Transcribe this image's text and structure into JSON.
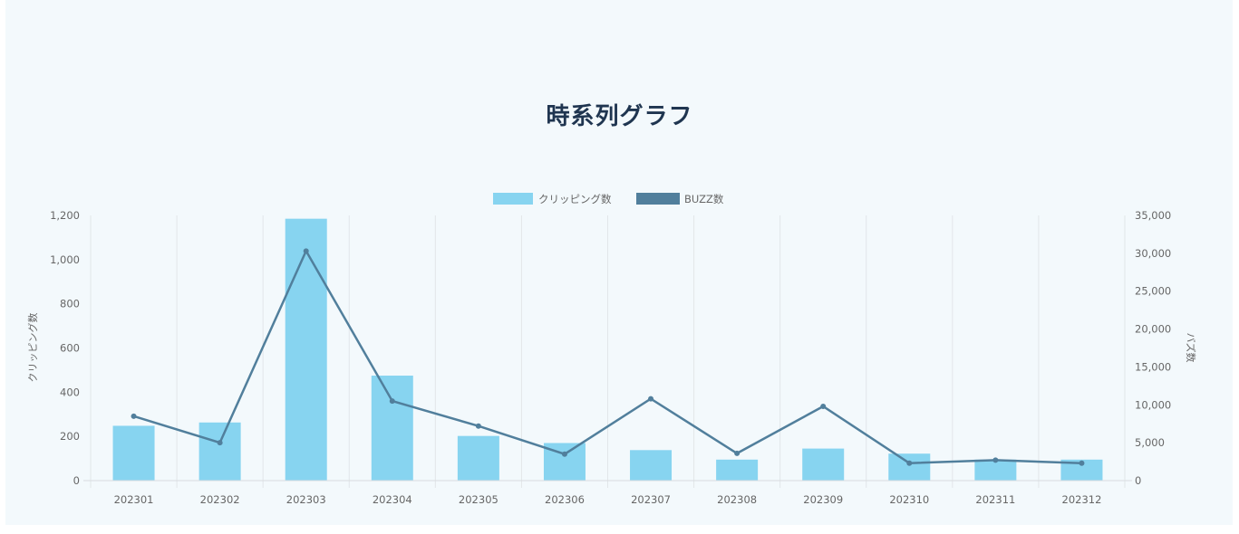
{
  "chart_data": {
    "type": "bar",
    "title": "時系列グラフ",
    "categories": [
      "202301",
      "202302",
      "202303",
      "202304",
      "202305",
      "202306",
      "202307",
      "202308",
      "202309",
      "202310",
      "202311",
      "202312"
    ],
    "series": [
      {
        "name": "クリッピング数",
        "type": "bar",
        "axis": "left",
        "color": "#87d4f0",
        "values": [
          248,
          263,
          1185,
          475,
          202,
          170,
          138,
          95,
          145,
          122,
          95,
          95
        ]
      },
      {
        "name": "BUZZ数",
        "type": "line",
        "axis": "right",
        "color": "#517f9c",
        "values": [
          8500,
          5000,
          30300,
          10500,
          7200,
          3500,
          10800,
          3600,
          9800,
          2300,
          2700,
          2300
        ]
      }
    ],
    "y_left": {
      "label": "クリッピング数",
      "min": 0,
      "max": 1200,
      "ticks": [
        "0",
        "200",
        "400",
        "600",
        "800",
        "1,000",
        "1,200"
      ]
    },
    "y_right": {
      "label": "バズ数",
      "min": 0,
      "max": 35000,
      "ticks": [
        "0",
        "5,000",
        "10,000",
        "15,000",
        "20,000",
        "25,000",
        "30,000",
        "35,000"
      ]
    },
    "grid": "vertical",
    "legend": "top-center"
  }
}
